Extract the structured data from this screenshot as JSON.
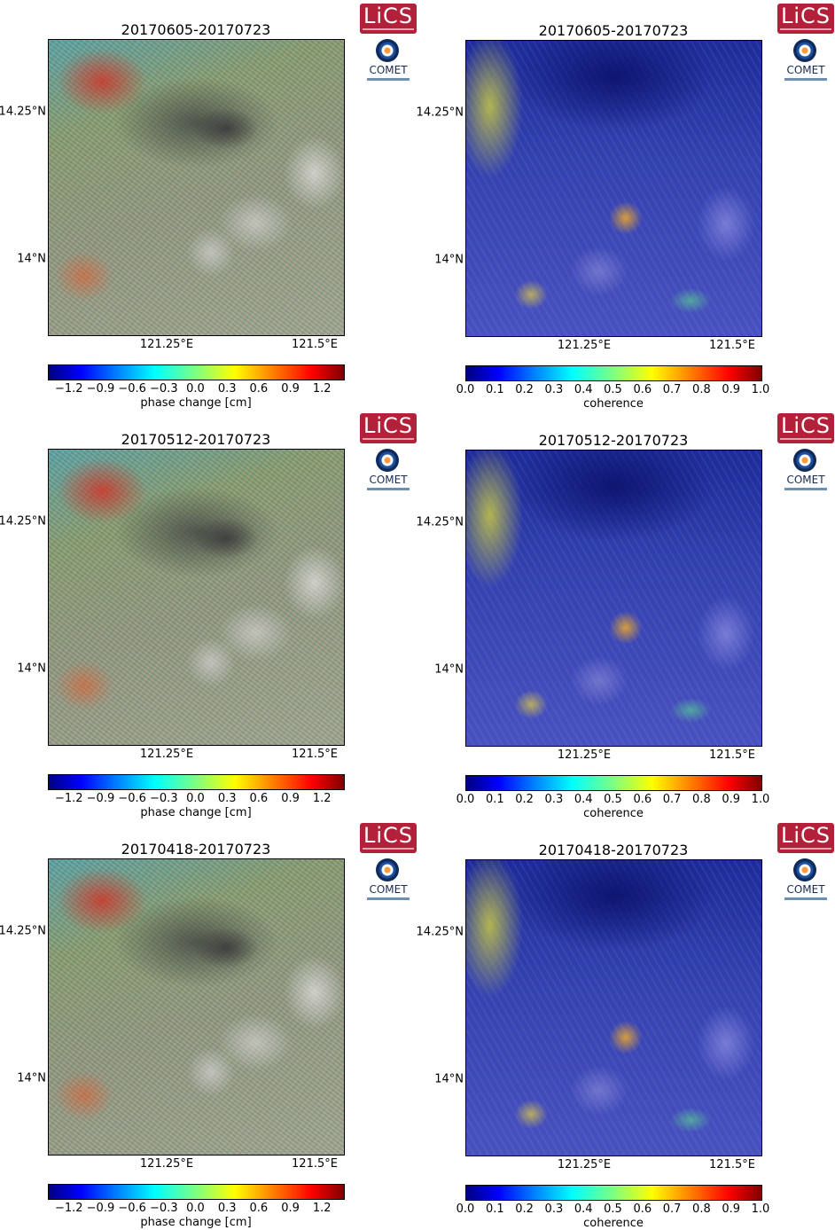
{
  "colors": {
    "lics_logo": "#b3203a",
    "comet_text": "#1b2a52"
  },
  "logos": {
    "lics": "LiCS",
    "comet": "COMET"
  },
  "axis_labels": {
    "lat_upper": "14.25°N",
    "lat_lower": "14°N",
    "lon_left": "121.25°E",
    "lon_right": "121.5°E"
  },
  "phase_colorbar": {
    "label": "phase change [cm]",
    "colormap": "jet",
    "ticks": [
      "−1.2",
      "−0.9",
      "−0.6",
      "−0.3",
      "0.0",
      "0.3",
      "0.6",
      "0.9",
      "1.2"
    ]
  },
  "coherence_colorbar": {
    "label": "coherence",
    "colormap": "jet",
    "ticks": [
      "0.0",
      "0.1",
      "0.2",
      "0.3",
      "0.4",
      "0.5",
      "0.6",
      "0.7",
      "0.8",
      "0.9",
      "1.0"
    ]
  },
  "rows": [
    {
      "date_pair": "20170605-20170723"
    },
    {
      "date_pair": "20170512-20170723"
    },
    {
      "date_pair": "20170418-20170723"
    }
  ]
}
